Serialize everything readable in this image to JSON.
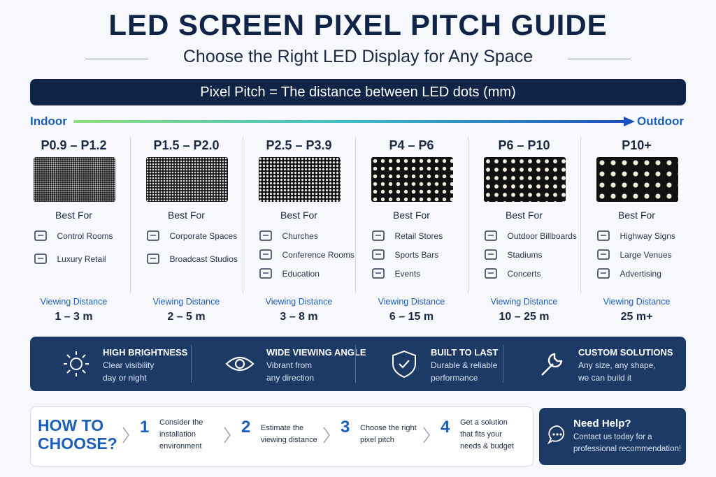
{
  "header": {
    "title": "LED SCREEN PIXEL PITCH GUIDE",
    "subtitle": "Choose the Right LED Display for Any Space"
  },
  "banner": {
    "text": "Pixel Pitch = The distance between LED dots (mm)"
  },
  "scale": {
    "left": "Indoor",
    "right": "Outdoor"
  },
  "columns": [
    {
      "pitch": "P0.9 – P1.2",
      "best_for": "Best For",
      "uses": [
        "Control Rooms",
        "Luxury Retail"
      ],
      "distance_label": "Viewing Distance",
      "distance": "1 – 3 m"
    },
    {
      "pitch": "P1.5 – P2.0",
      "best_for": "Best For",
      "uses": [
        "Corporate Spaces",
        "Broadcast Studios"
      ],
      "distance_label": "Viewing Distance",
      "distance": "2 – 5 m"
    },
    {
      "pitch": "P2.5 – P3.9",
      "best_for": "Best For",
      "uses": [
        "Churches",
        "Conference Rooms",
        "Education"
      ],
      "distance_label": "Viewing Distance",
      "distance": "3 – 8 m"
    },
    {
      "pitch": "P4 – P6",
      "best_for": "Best For",
      "uses": [
        "Retail Stores",
        "Sports Bars",
        "Events"
      ],
      "distance_label": "Viewing Distance",
      "distance": "6 – 15 m"
    },
    {
      "pitch": "P6 – P10",
      "best_for": "Best For",
      "uses": [
        "Outdoor Billboards",
        "Stadiums",
        "Concerts"
      ],
      "distance_label": "Viewing Distance",
      "distance": "10 – 25 m"
    },
    {
      "pitch": "P10+",
      "best_for": "Best For",
      "uses": [
        "Highway Signs",
        "Large Venues",
        "Advertising"
      ],
      "distance_label": "Viewing Distance",
      "distance": "25 m+"
    }
  ],
  "features": [
    {
      "title": "HIGH BRIGHTNESS",
      "lines": [
        "Clear visibility",
        "day or night"
      ]
    },
    {
      "title": "WIDE VIEWING ANGLE",
      "lines": [
        "Vibrant from",
        "any direction"
      ]
    },
    {
      "title": "BUILT TO LAST",
      "lines": [
        "Durable & reliable",
        "performance"
      ]
    },
    {
      "title": "CUSTOM SOLUTIONS",
      "lines": [
        "Any size, any shape,",
        "we can build it"
      ]
    }
  ],
  "how": {
    "title": [
      "HOW TO",
      "CHOOSE?"
    ],
    "steps": [
      {
        "number": "1",
        "lines": [
          "Consider the",
          "installation",
          "environment"
        ]
      },
      {
        "number": "2",
        "lines": [
          "Estimate the",
          "viewing distance"
        ]
      },
      {
        "number": "3",
        "lines": [
          "Choose the right",
          "pixel pitch"
        ]
      },
      {
        "number": "4",
        "lines": [
          "Get a solution",
          "that fits your",
          "needs & budget"
        ]
      }
    ]
  },
  "help": {
    "title": "Need Help?",
    "lines": [
      "Contact us today for a",
      "professional recommendation!"
    ]
  }
}
